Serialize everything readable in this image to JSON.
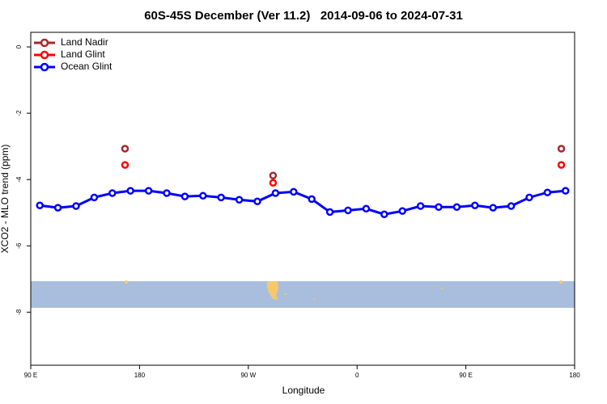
{
  "chart_data": {
    "type": "line",
    "title": "60S-45S December (Ver 11.2)   2014-09-06 to 2024-07-31",
    "x_label": "Longitude",
    "y_label": "XCO2 - MLO trend (ppm)",
    "xlim": [
      90,
      540
    ],
    "ylim": [
      -9.6,
      0.44
    ],
    "xticks": [
      {
        "value": 90,
        "label": "90 E"
      },
      180,
      {
        "value": 270,
        "label": "90 W"
      },
      {
        "value": 360,
        "label": "0"
      },
      {
        "value": 450,
        "label": "90 E"
      },
      {
        "value": 540,
        "label": "180"
      }
    ],
    "yticks": [
      0,
      -2,
      -4,
      -6,
      -8
    ],
    "legend": "top-left",
    "series": [
      {
        "name": "Land Nadir",
        "color": "#a52a2a",
        "line": false,
        "x": [
          168,
          290.5,
          529
        ],
        "values": [
          -3.07,
          -3.88,
          -3.07
        ]
      },
      {
        "name": "Land Glint",
        "color": "#ff0000",
        "line": false,
        "x": [
          168,
          290.5,
          529
        ],
        "values": [
          -3.56,
          -4.1,
          -3.56
        ]
      },
      {
        "name": "Ocean Glint",
        "color": "#0000ff",
        "line": true,
        "x": [
          97.5,
          112.5,
          127.5,
          142.5,
          157.5,
          172.5,
          187.5,
          202.5,
          217.5,
          232.5,
          247.5,
          262.5,
          277.5,
          292.5,
          307.5,
          322.5,
          337.5,
          352.5,
          367.5,
          382.5,
          397.5,
          412.5,
          427.5,
          442.5,
          457.5,
          472.5,
          487.5,
          502.5,
          517.5,
          532.5
        ],
        "values": [
          -4.78,
          -4.85,
          -4.8,
          -4.54,
          -4.41,
          -4.34,
          -4.34,
          -4.41,
          -4.51,
          -4.49,
          -4.54,
          -4.61,
          -4.66,
          -4.41,
          -4.37,
          -4.59,
          -4.98,
          -4.93,
          -4.88,
          -5.05,
          -4.95,
          -4.8,
          -4.83,
          -4.83,
          -4.78,
          -4.85,
          -4.8,
          -4.54,
          -4.39,
          -4.34
        ]
      }
    ]
  }
}
